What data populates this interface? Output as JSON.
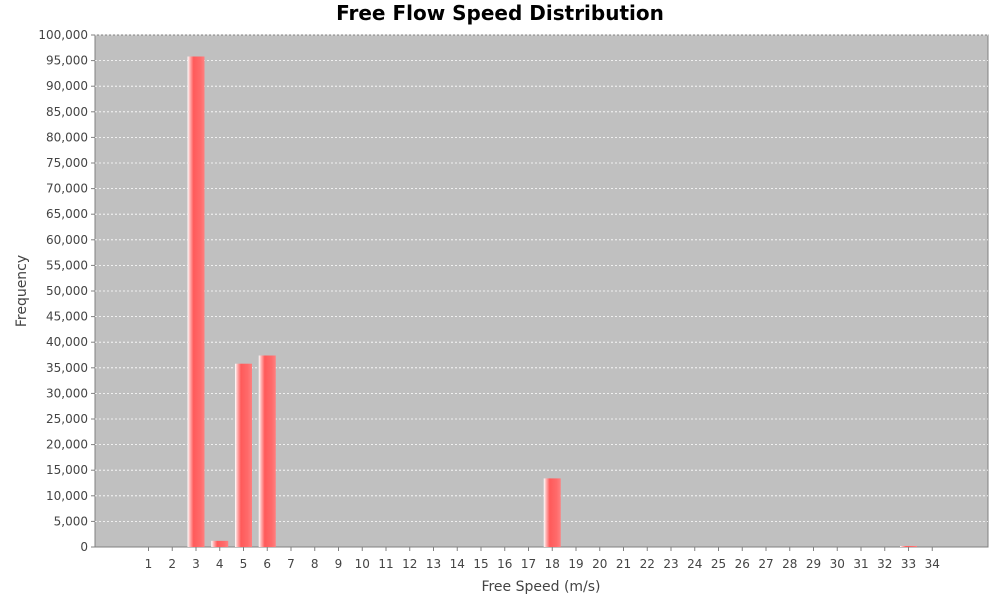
{
  "chart_data": {
    "type": "bar",
    "title": "Free Flow Speed Distribution",
    "xlabel": "Free Speed (m/s)",
    "ylabel": "Frequency",
    "categories": [
      "1",
      "2",
      "3",
      "4",
      "5",
      "6",
      "7",
      "8",
      "9",
      "10",
      "11",
      "12",
      "13",
      "14",
      "15",
      "16",
      "17",
      "18",
      "19",
      "20",
      "21",
      "22",
      "23",
      "24",
      "25",
      "26",
      "27",
      "28",
      "29",
      "30",
      "31",
      "32",
      "33",
      "34"
    ],
    "values": [
      0,
      0,
      95800,
      1200,
      35800,
      37400,
      0,
      0,
      0,
      0,
      0,
      0,
      0,
      0,
      0,
      0,
      0,
      13400,
      0,
      0,
      0,
      0,
      0,
      0,
      0,
      0,
      0,
      0,
      0,
      0,
      0,
      0,
      200,
      0
    ],
    "ylim": [
      0,
      100000
    ],
    "yticks": [
      0,
      5000,
      10000,
      15000,
      20000,
      25000,
      30000,
      35000,
      40000,
      45000,
      50000,
      55000,
      60000,
      65000,
      70000,
      75000,
      80000,
      85000,
      90000,
      95000,
      100000
    ],
    "ytick_labels": [
      "0",
      "5,000",
      "10,000",
      "15,000",
      "20,000",
      "25,000",
      "30,000",
      "35,000",
      "40,000",
      "45,000",
      "50,000",
      "55,000",
      "60,000",
      "65,000",
      "70,000",
      "75,000",
      "80,000",
      "85,000",
      "90,000",
      "95,000",
      "100,000"
    ],
    "grid": true,
    "colors": {
      "plot_background": "#c0c0c0",
      "bar": "#ff5555",
      "bar_highlight": "#ffb0b0",
      "gridline": "#ffffff"
    }
  }
}
